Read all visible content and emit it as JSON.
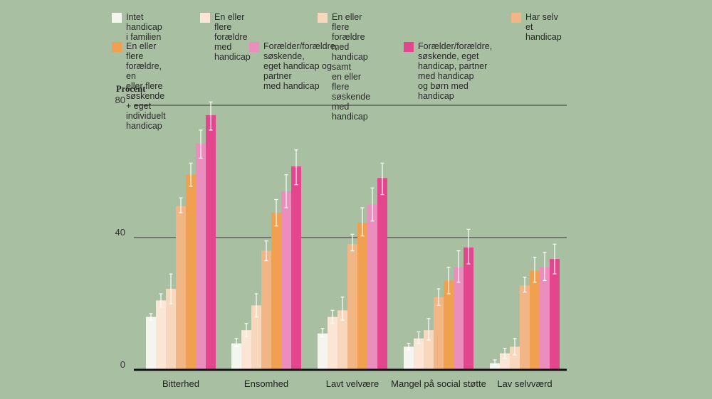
{
  "chart_data": {
    "type": "bar",
    "title": "",
    "ylabel": "Procent",
    "xlabel": "",
    "ylim": [
      0,
      80
    ],
    "yticks": [
      0,
      40,
      80
    ],
    "categories": [
      "Bitterhed",
      "Ensomhed",
      "Lavt velvære",
      "Mangel på social støtte",
      "Lav selvværd"
    ],
    "series": [
      {
        "name": "Intet handicap\ni familien",
        "color": "#f5f5f0",
        "values": [
          16,
          8,
          11,
          7,
          2
        ],
        "err_low": [
          15,
          7,
          10,
          6,
          1.5
        ],
        "err_high": [
          17,
          9.5,
          12.5,
          8,
          3
        ]
      },
      {
        "name": "En eller flere forældre\nmed handicap",
        "color": "#fbe6d6",
        "values": [
          21,
          12,
          16,
          9.5,
          5
        ],
        "err_low": [
          19,
          10,
          14,
          8,
          3.5
        ],
        "err_high": [
          23,
          14,
          18,
          11.5,
          6.5
        ]
      },
      {
        "name": "En eller flere forældre med handicap samt\nen eller flere søskende med handicap",
        "color": "#f8d8bc",
        "values": [
          24.5,
          19.5,
          18,
          12,
          7
        ],
        "err_low": [
          20,
          16,
          15,
          9,
          4.5
        ],
        "err_high": [
          29,
          23,
          22,
          15.5,
          9.5
        ]
      },
      {
        "name": "Har selv et\nhandicap",
        "color": "#f2b686",
        "values": [
          49.5,
          36,
          38,
          22,
          25.5
        ],
        "err_low": [
          47.5,
          33,
          36,
          19.5,
          23.5
        ],
        "err_high": [
          52,
          39,
          41,
          24.5,
          28
        ]
      },
      {
        "name": "En eller flere forældre, en\neller flere søskende + eget\nindividuelt handicap",
        "color": "#f0a04e",
        "values": [
          59,
          47.5,
          44.5,
          27,
          30
        ],
        "err_low": [
          55.5,
          43.5,
          40.5,
          23,
          26.5
        ],
        "err_high": [
          62.5,
          51.5,
          49,
          31,
          34
        ]
      },
      {
        "name": "Forælder/forældre, søskende,\neget handicap og partner\nmed handicap",
        "color": "#eb8dbd",
        "values": [
          68.5,
          54,
          50,
          31,
          31
        ],
        "err_low": [
          64,
          49,
          45,
          26.5,
          27
        ],
        "err_high": [
          72.5,
          59,
          55,
          36,
          35.5
        ]
      },
      {
        "name": "Forælder/forældre, søskende, eget\nhandicap, partner med handicap\nog børn med handicap",
        "color": "#e3468d",
        "values": [
          77,
          61.5,
          58,
          37,
          33.5
        ],
        "err_low": [
          72.5,
          56,
          53,
          32,
          29
        ],
        "err_high": [
          81,
          66.5,
          62.5,
          42.5,
          38
        ]
      }
    ]
  }
}
